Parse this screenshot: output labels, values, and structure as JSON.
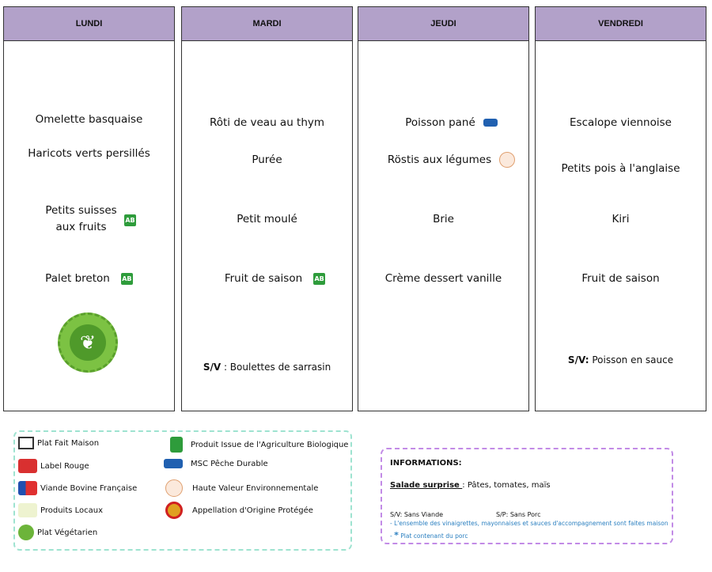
{
  "days": [
    {
      "name": "LUNDI",
      "items": [
        "Omelette basquaise",
        "Haricots verts persillés",
        "Petits suisses",
        "aux fruits",
        "Palet breton"
      ]
    },
    {
      "name": "MARDI",
      "items": [
        "Rôti de veau au thym",
        "Purée",
        "Petit moulé",
        "Fruit de saison"
      ],
      "sv_label": "S/V",
      "sv_text": ": Boulettes de sarrasin"
    },
    {
      "name": "JEUDI",
      "items": [
        "Poisson pané",
        "Röstis aux légumes",
        "Brie",
        "Crème dessert vanille"
      ]
    },
    {
      "name": "VENDREDI",
      "items": [
        "Escalope viennoise",
        "Petits pois à l'anglaise",
        "Kiri",
        "Fruit de saison"
      ],
      "sv_label": "S/V:",
      "sv_text": "Poisson en sauce"
    }
  ],
  "badges": {
    "ab": "AB"
  },
  "legend": [
    {
      "icon": "house-icon",
      "label": "Plat Fait Maison"
    },
    {
      "icon": "label-rouge-icon",
      "label": "Label Rouge"
    },
    {
      "icon": "vbf-icon",
      "label": "Viande Bovine Française"
    },
    {
      "icon": "produits-locaux-icon",
      "label": "Produits Locaux"
    },
    {
      "icon": "vegetarian-leaf-icon",
      "label": "Plat Végétarien"
    },
    {
      "icon": "ab-icon",
      "label": "Produit Issue de l'Agriculture Biologique"
    },
    {
      "icon": "msc-icon",
      "label": "MSC Pêche Durable"
    },
    {
      "icon": "hve-icon",
      "label": "Haute Valeur Environnementale"
    },
    {
      "icon": "aop-icon",
      "label": "Appellation d'Origine Protégée"
    }
  ],
  "info": {
    "title": "INFORMATIONS:",
    "salade_label": "Salade surprise ",
    "salade_text": ": Pâtes, tomates, maïs",
    "sv": "S/V: Sans Viande",
    "sp": "S/P: Sans Porc",
    "note1": "- L'ensemble des vinaigrettes, mayonnaises et sauces d'accompagnement sont faites maison",
    "note2_dash": "-",
    "note2_star": "*",
    "note2": " Plat contenant du porc"
  },
  "colors": {
    "header": "#b2a1c9",
    "legend_border": "#9ee3d0",
    "info_border": "#c28be6",
    "note": "#2a7fc0"
  }
}
